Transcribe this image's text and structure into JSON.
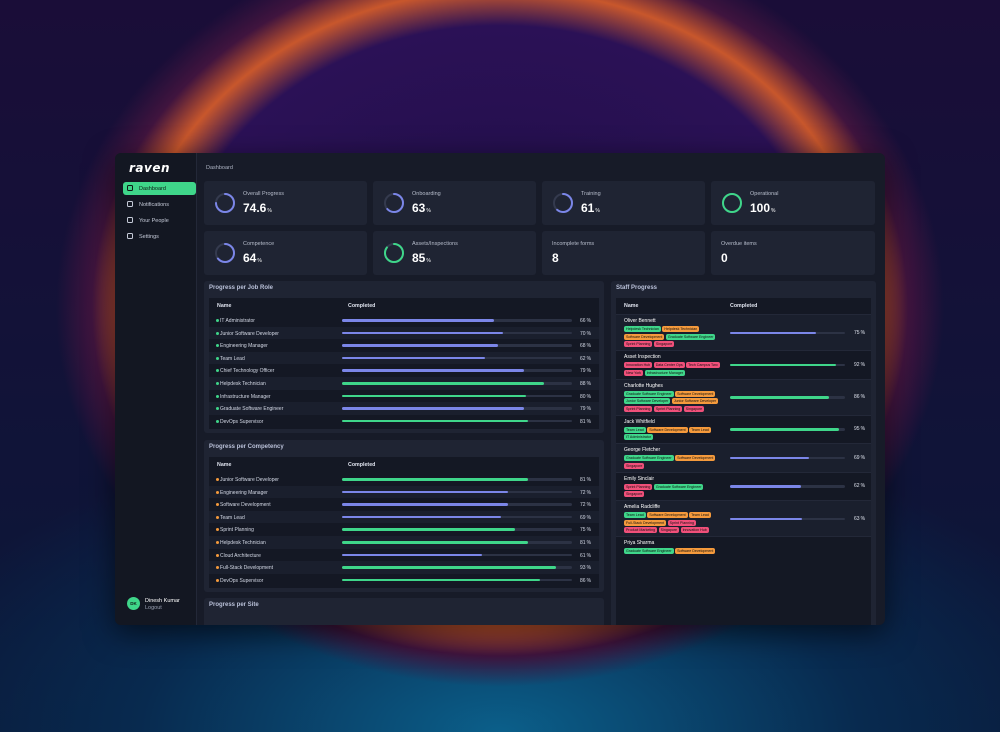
{
  "sidebar": {
    "logo": "raven",
    "nav": [
      {
        "label": "Dashboard",
        "active": true
      },
      {
        "label": "Notifications"
      },
      {
        "label": "Your People"
      },
      {
        "label": "Settings"
      }
    ],
    "user": {
      "initials": "DK",
      "name": "Dinesh Kumar",
      "action": "Logout"
    }
  },
  "breadcrumb": "Dashboard",
  "unit": "%",
  "stats": [
    {
      "label": "Overall Progress",
      "value": 74.6,
      "color": "#7b86e8"
    },
    {
      "label": "Onboarding",
      "value": 63,
      "color": "#7b86e8"
    },
    {
      "label": "Training",
      "value": 61,
      "color": "#7b86e8"
    },
    {
      "label": "Operational",
      "value": 100,
      "color": "#3fd68a"
    },
    {
      "label": "Competence",
      "value": 64,
      "color": "#7b86e8"
    },
    {
      "label": "Assets/Inspections",
      "value": 85,
      "color": "#3fd68a"
    },
    {
      "label": "Incomplete forms",
      "value": 8
    },
    {
      "label": "Overdue items",
      "value": 0
    }
  ],
  "job_roles": {
    "title": "Progress per Job Role",
    "columns": [
      "Name",
      "Completed"
    ],
    "dot": "#3fd68a",
    "rows": [
      {
        "name": "IT Administrator",
        "value": 66,
        "color": "#7b86e8"
      },
      {
        "name": "Junior Software Developer",
        "value": 70,
        "color": "#7b86e8"
      },
      {
        "name": "Engineering Manager",
        "value": 68,
        "color": "#7b86e8"
      },
      {
        "name": "Team Lead",
        "value": 62,
        "color": "#7b86e8"
      },
      {
        "name": "Chief Technology Officer",
        "value": 79,
        "color": "#7b86e8"
      },
      {
        "name": "Helpdesk Technician",
        "value": 88,
        "color": "#3fd68a"
      },
      {
        "name": "Infrastructure Manager",
        "value": 80,
        "color": "#3fd68a"
      },
      {
        "name": "Graduate Software Engineer",
        "value": 79,
        "color": "#7b86e8"
      },
      {
        "name": "DevOps Supervisor",
        "value": 81,
        "color": "#3fd68a"
      }
    ]
  },
  "competencies": {
    "title": "Progress per Competency",
    "columns": [
      "Name",
      "Completed"
    ],
    "dot": "#f59a3c",
    "rows": [
      {
        "name": "Junior Software Developer",
        "value": 81,
        "color": "#3fd68a"
      },
      {
        "name": "Engineering Manager",
        "value": 72,
        "color": "#7b86e8"
      },
      {
        "name": "Software Development",
        "value": 72,
        "color": "#7b86e8"
      },
      {
        "name": "Team Lead",
        "value": 69,
        "color": "#7b86e8"
      },
      {
        "name": "Sprint Planning",
        "value": 75,
        "color": "#3fd68a"
      },
      {
        "name": "Helpdesk Technician",
        "value": 81,
        "color": "#3fd68a"
      },
      {
        "name": "Cloud Architecture",
        "value": 61,
        "color": "#7b86e8"
      },
      {
        "name": "Full-Stack Development",
        "value": 93,
        "color": "#3fd68a"
      },
      {
        "name": "DevOps Supervisor",
        "value": 86,
        "color": "#3fd68a"
      }
    ]
  },
  "sites": {
    "title": "Progress per Site"
  },
  "staff": {
    "title": "Staff Progress",
    "columns": [
      "Name",
      "Completed"
    ],
    "rows": [
      {
        "name": "Oliver Bennett",
        "value": 75,
        "color": "#7b86e8",
        "tags": [
          {
            "text": "Helpdesk Technician",
            "color": "#3fd68a"
          },
          {
            "text": "Helpdesk Technician",
            "color": "#f59a3c"
          },
          {
            "text": "Software Development",
            "color": "#f59a3c"
          },
          {
            "text": "Graduate Software Engineer",
            "color": "#3fd68a"
          },
          {
            "text": "Sprint Planning",
            "color": "#f0507a"
          },
          {
            "text": "Singapore",
            "color": "#f0507a"
          }
        ]
      },
      {
        "name": "Asset Inspection",
        "value": 92,
        "color": "#3fd68a",
        "tags": [
          {
            "text": "Innovation Hub",
            "color": "#f0507a"
          },
          {
            "text": "Data Center Ops",
            "color": "#f0507a"
          },
          {
            "text": "Tech Campus Two",
            "color": "#f0507a"
          },
          {
            "text": "New York",
            "color": "#f0507a"
          },
          {
            "text": "Infrastructure Manager",
            "color": "#3fd68a"
          }
        ]
      },
      {
        "name": "Charlotte Hughes",
        "value": 86,
        "color": "#3fd68a",
        "tags": [
          {
            "text": "Graduate Software Engineer",
            "color": "#3fd68a"
          },
          {
            "text": "Software Development",
            "color": "#f59a3c"
          },
          {
            "text": "Junior Software Developer",
            "color": "#3fd68a"
          },
          {
            "text": "Junior Software Developer",
            "color": "#f59a3c"
          },
          {
            "text": "Sprint Planning",
            "color": "#f0507a"
          },
          {
            "text": "Sprint Planning",
            "color": "#f0507a"
          },
          {
            "text": "Singapore",
            "color": "#f0507a"
          }
        ]
      },
      {
        "name": "Jack Whitfield",
        "value": 95,
        "color": "#3fd68a",
        "tags": [
          {
            "text": "Team Lead",
            "color": "#3fd68a"
          },
          {
            "text": "Software Development",
            "color": "#f59a3c"
          },
          {
            "text": "Team Lead",
            "color": "#f59a3c"
          },
          {
            "text": "IT Administrator",
            "color": "#3fd68a"
          }
        ]
      },
      {
        "name": "George Fletcher",
        "value": 69,
        "color": "#7b86e8",
        "tags": [
          {
            "text": "Graduate Software Engineer",
            "color": "#3fd68a"
          },
          {
            "text": "Software Development",
            "color": "#f59a3c"
          },
          {
            "text": "Singapore",
            "color": "#f0507a"
          }
        ]
      },
      {
        "name": "Emily Sinclair",
        "value": 62,
        "color": "#7b86e8",
        "tags": [
          {
            "text": "Sprint Planning",
            "color": "#f0507a"
          },
          {
            "text": "Graduate Software Engineer",
            "color": "#3fd68a"
          },
          {
            "text": "Singapore",
            "color": "#f0507a"
          }
        ]
      },
      {
        "name": "Amelia Radcliffe",
        "value": 63,
        "color": "#7b86e8",
        "tags": [
          {
            "text": "Team Lead",
            "color": "#3fd68a"
          },
          {
            "text": "Software Development",
            "color": "#f59a3c"
          },
          {
            "text": "Team Lead",
            "color": "#f59a3c"
          },
          {
            "text": "Full-Stack Development",
            "color": "#f59a3c"
          },
          {
            "text": "Sprint Planning",
            "color": "#f0507a"
          },
          {
            "text": "Product Marketing",
            "color": "#f0507a"
          },
          {
            "text": "Singapore",
            "color": "#f0507a"
          },
          {
            "text": "Innovation Hub",
            "color": "#f0507a"
          }
        ]
      },
      {
        "name": "Priya Sharma",
        "value": null,
        "color": "#7b86e8",
        "tags": [
          {
            "text": "Graduate Software Engineer",
            "color": "#3fd68a"
          },
          {
            "text": "Software Development",
            "color": "#f59a3c"
          }
        ]
      }
    ]
  }
}
